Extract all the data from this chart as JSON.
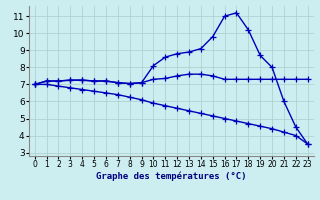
{
  "xlabel": "Graphe des températures (°C)",
  "background_color": "#cceef0",
  "grid_color": "#aacccc",
  "line_color": "#0000bb",
  "xlim": [
    -0.5,
    23.5
  ],
  "ylim": [
    2.8,
    11.6
  ],
  "xticks": [
    0,
    1,
    2,
    3,
    4,
    5,
    6,
    7,
    8,
    9,
    10,
    11,
    12,
    13,
    14,
    15,
    16,
    17,
    18,
    19,
    20,
    21,
    22,
    23
  ],
  "yticks": [
    3,
    4,
    5,
    6,
    7,
    8,
    9,
    10,
    11
  ],
  "line1_x": [
    0,
    1,
    2,
    3,
    4,
    5,
    6,
    7,
    8,
    9,
    10,
    11,
    12,
    13,
    14,
    15,
    16,
    17,
    18,
    19,
    20,
    21,
    22,
    23
  ],
  "line1_y": [
    7.0,
    7.2,
    7.2,
    7.25,
    7.25,
    7.2,
    7.2,
    7.1,
    7.05,
    7.1,
    7.3,
    7.35,
    7.5,
    7.6,
    7.6,
    7.5,
    7.3,
    7.3,
    7.3,
    7.3,
    7.3,
    7.3,
    7.3,
    7.3
  ],
  "line2_x": [
    0,
    1,
    2,
    3,
    4,
    5,
    6,
    7,
    8,
    9,
    10,
    11,
    12,
    13,
    14,
    15,
    16,
    17,
    18,
    19,
    20,
    21,
    22,
    23
  ],
  "line2_y": [
    7.0,
    7.2,
    7.2,
    7.25,
    7.25,
    7.2,
    7.2,
    7.1,
    7.05,
    7.1,
    8.1,
    8.6,
    8.8,
    8.9,
    9.1,
    9.8,
    11.0,
    11.2,
    10.2,
    8.7,
    8.0,
    6.0,
    4.5,
    3.5
  ],
  "line3_x": [
    0,
    1,
    2,
    3,
    4,
    5,
    6,
    7,
    8,
    9,
    10,
    11,
    12,
    13,
    14,
    15,
    16,
    17,
    18,
    19,
    20,
    21,
    22,
    23
  ],
  "line3_y": [
    7.0,
    7.0,
    6.9,
    6.8,
    6.7,
    6.6,
    6.5,
    6.4,
    6.25,
    6.1,
    5.9,
    5.75,
    5.6,
    5.45,
    5.3,
    5.15,
    5.0,
    4.85,
    4.7,
    4.55,
    4.4,
    4.2,
    4.0,
    3.5
  ],
  "marker": "+",
  "markersize": 4,
  "linewidth": 1.0,
  "xlabel_fontsize": 6.5,
  "tick_fontsize_x": 5.5,
  "tick_fontsize_y": 6.5
}
